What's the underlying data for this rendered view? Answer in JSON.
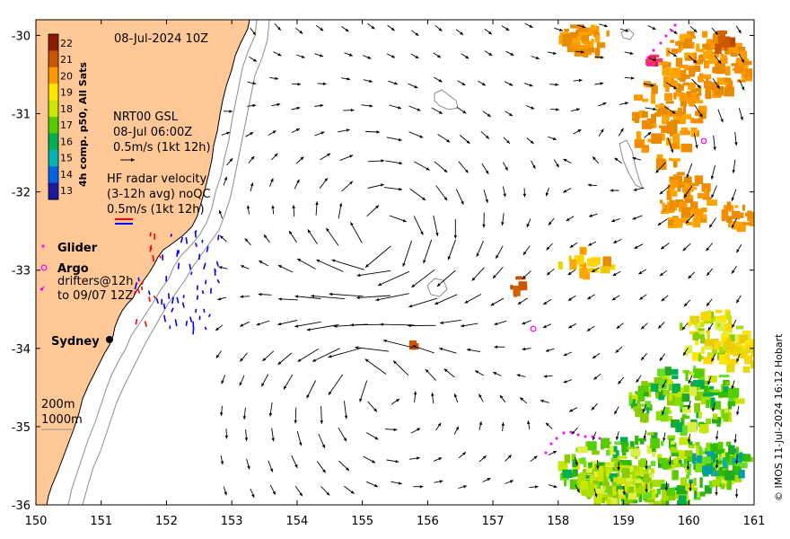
{
  "map": {
    "timestamp": "08-Jul-2024 10Z",
    "credit": "© IMOS 11-Jul-2024 16:12 Hobart",
    "lon_range": [
      150,
      161
    ],
    "lat_range": [
      -36,
      -29.8
    ],
    "x_ticks": [
      "150",
      "151",
      "152",
      "153",
      "154",
      "155",
      "156",
      "157",
      "158",
      "159",
      "160",
      "161"
    ],
    "y_ticks": [
      "-30",
      "-31",
      "-32",
      "-33",
      "-34",
      "-35",
      "-36"
    ],
    "colors": {
      "land": "#FFC896",
      "arrow": "#000000",
      "argo": "#FF00FF",
      "glider": "#FF00FF"
    }
  },
  "colorbar": {
    "title": "4h comp. p50, All Sats",
    "ticks": [
      "22",
      "21",
      "20",
      "19",
      "18",
      "17",
      "16",
      "15",
      "14",
      "13"
    ],
    "colors": [
      "#8B1A00",
      "#CC5500",
      "#FF9900",
      "#FFE600",
      "#C8E600",
      "#55CC00",
      "#00B050",
      "#00B4B4",
      "#0064E6",
      "#1A1AA0"
    ]
  },
  "legend": {
    "gsl_title": "NRT00 GSL",
    "gsl_time": "08-Jul 06:00Z",
    "gsl_scale": "0.5m/s (1kt 12h)",
    "hf_line1": "HF radar velocity",
    "hf_line2": "(3-12h avg) noQC",
    "hf_line3": "0.5m/s (1kt 12h)",
    "glider": "Glider",
    "argo": "Argo",
    "drifters_line1": "drifters@12h",
    "drifters_line2": "to 09/07 12Z",
    "sydney": "Sydney",
    "iso200": "200m",
    "iso1000": "1000m"
  }
}
